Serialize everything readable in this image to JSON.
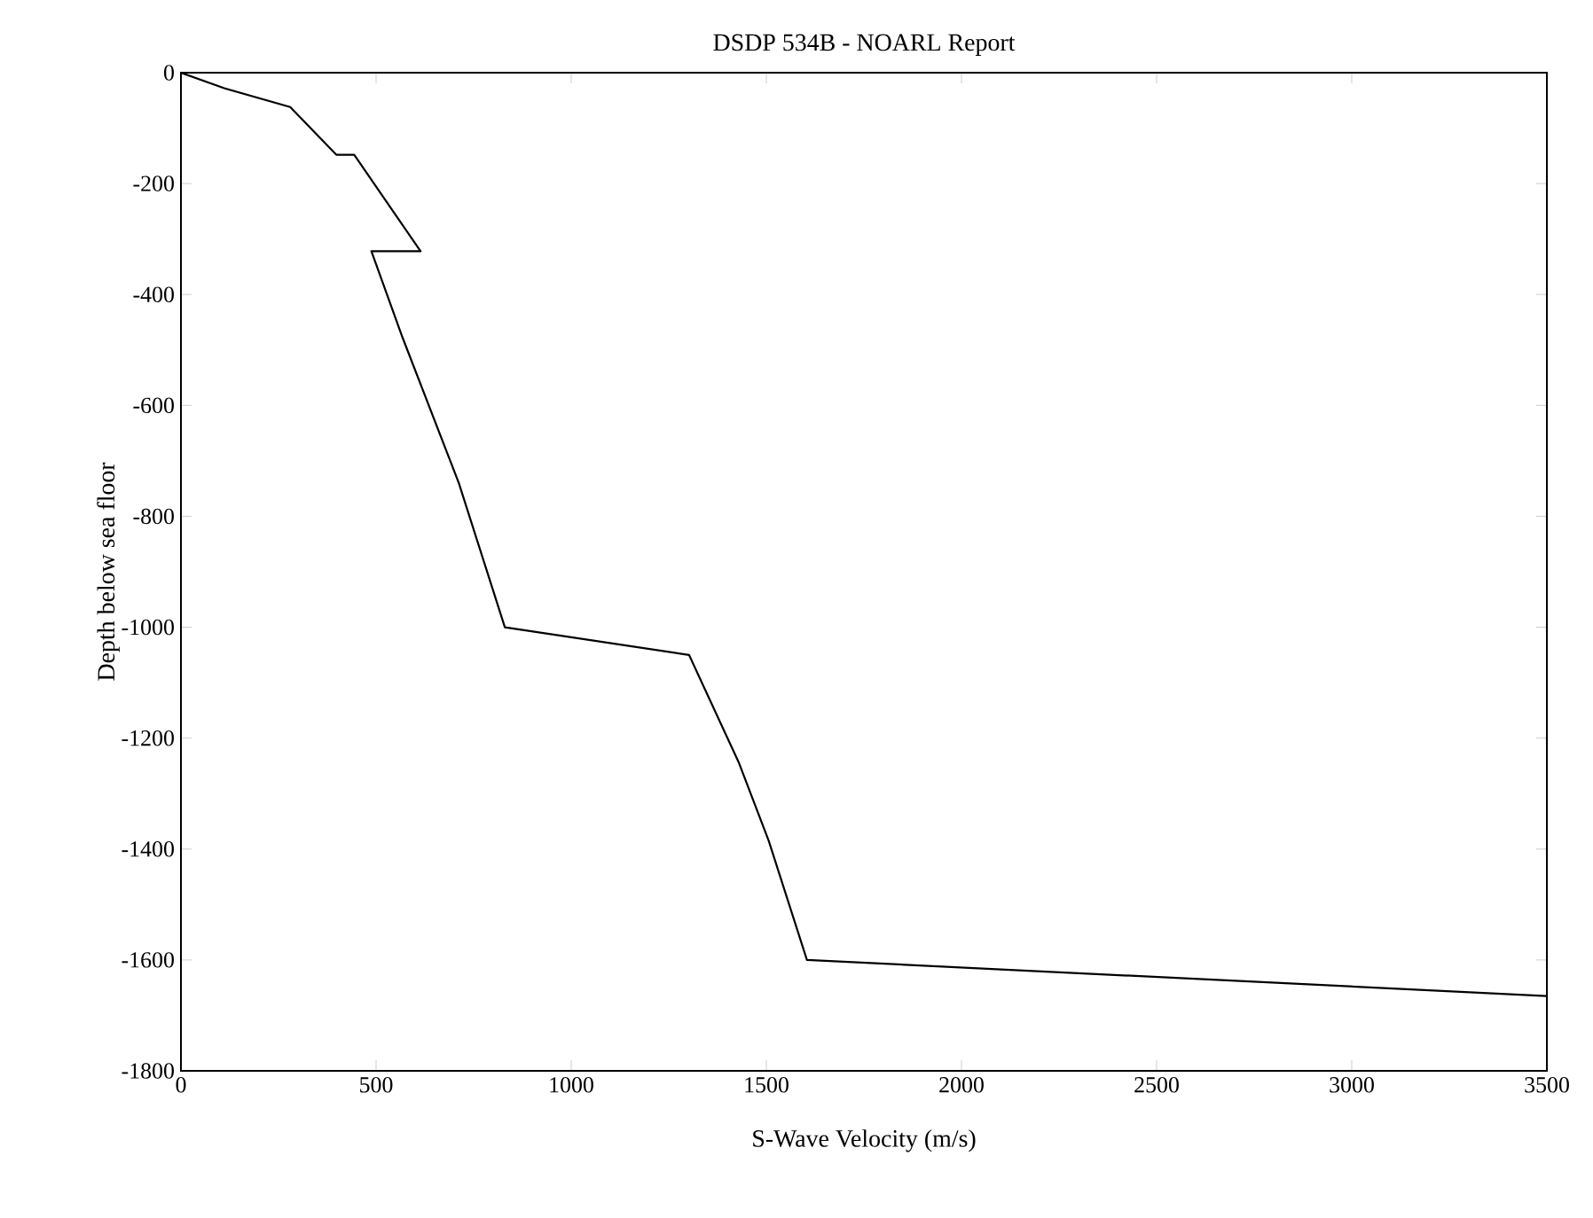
{
  "chart_data": {
    "type": "line",
    "title": "DSDP 534B - NOARL Report",
    "xlabel": "S-Wave Velocity (m/s)",
    "ylabel": "Depth below sea floor",
    "xlim": [
      0,
      3500
    ],
    "ylim": [
      -1800,
      0
    ],
    "xticks": [
      0,
      500,
      1000,
      1500,
      2000,
      2500,
      3000,
      3500
    ],
    "yticks": [
      -1800,
      -1600,
      -1400,
      -1200,
      -1000,
      -800,
      -600,
      -400,
      -200,
      0
    ],
    "series": [
      {
        "color": "#000000",
        "x": [
          0,
          111,
          280,
          398,
          444,
          614,
          488,
          568,
          712,
          830,
          1302,
          1430,
          1506,
          1604,
          3500
        ],
        "values": [
          0,
          -28,
          -62,
          -148,
          -148,
          -322,
          -322,
          -478,
          -740,
          -1000,
          -1050,
          -1245,
          -1385,
          -1600,
          -1665
        ]
      }
    ]
  }
}
